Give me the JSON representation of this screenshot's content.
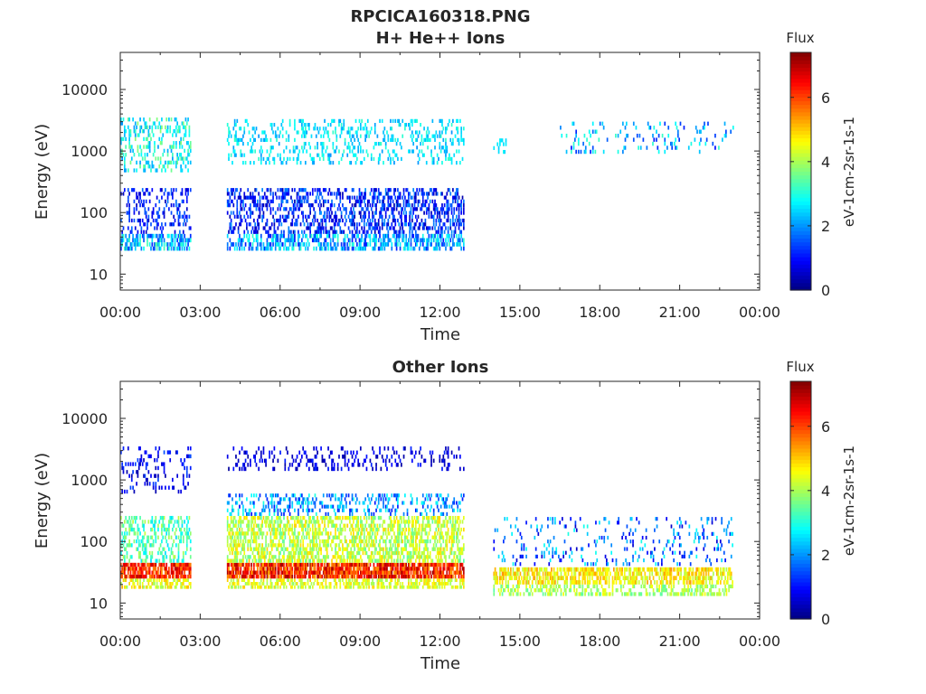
{
  "figure": {
    "title": "RPCICA160318.PNG"
  },
  "chart_data": [
    {
      "type": "heatmap",
      "title": "H+ He++ Ions",
      "xlabel": "Time",
      "ylabel": "Energy (eV)",
      "x_ticks": [
        "00:00",
        "03:00",
        "06:00",
        "09:00",
        "12:00",
        "15:00",
        "18:00",
        "21:00",
        "00:00"
      ],
      "y_ticks": [
        "10",
        "100",
        "1000",
        "10000"
      ],
      "x_range_hours": [
        0,
        24
      ],
      "y_range_ev": [
        5.5,
        40000
      ],
      "y_scale": "log",
      "colorbar": {
        "label": "Flux",
        "unit": "eV-1cm-2sr-1s-1",
        "ticks": [
          "0",
          "2",
          "4",
          "6"
        ],
        "range": [
          0,
          7.4
        ]
      },
      "colormap": [
        "#00007f",
        "#0000ff",
        "#007fff",
        "#00ffff",
        "#7fff7f",
        "#ffff00",
        "#ff7f00",
        "#ff0000",
        "#7f0000"
      ],
      "grid": false,
      "data_gaps_hours": [
        [
          2.7,
          4.0
        ],
        [
          12.95,
          14.05
        ]
      ],
      "segments": [
        {
          "t": [
            0.0,
            2.65
          ],
          "bands": [
            {
              "e": [
                24,
                45
              ],
              "density": 0.55,
              "flux": [
                1.2,
                3.4
              ]
            },
            {
              "e": [
                45,
                250
              ],
              "density": 0.25,
              "flux": [
                0.4,
                1.8
              ]
            },
            {
              "e": [
                450,
                3500
              ],
              "density": 0.28,
              "flux": [
                2.0,
                3.8
              ]
            }
          ]
        },
        {
          "t": [
            4.0,
            12.9
          ],
          "bands": [
            {
              "e": [
                24,
                45
              ],
              "density": 0.5,
              "flux": [
                1.0,
                3.2
              ]
            },
            {
              "e": [
                45,
                250
              ],
              "density": 0.4,
              "flux": [
                0.3,
                2.0
              ]
            },
            {
              "e": [
                600,
                3300
              ],
              "density": 0.22,
              "flux": [
                2.0,
                3.2
              ]
            }
          ]
        },
        {
          "t": [
            14.0,
            14.6
          ],
          "bands": [
            {
              "e": [
                900,
                1600
              ],
              "density": 0.2,
              "flux": [
                2.4,
                3.0
              ]
            }
          ]
        },
        {
          "t": [
            16.5,
            23.0
          ],
          "bands": [
            {
              "e": [
                900,
                3000
              ],
              "density": 0.12,
              "flux": [
                1.0,
                3.2
              ]
            }
          ]
        }
      ]
    },
    {
      "type": "heatmap",
      "title": "Other Ions",
      "xlabel": "Time",
      "ylabel": "Energy (eV)",
      "x_ticks": [
        "00:00",
        "03:00",
        "06:00",
        "09:00",
        "12:00",
        "15:00",
        "18:00",
        "21:00",
        "00:00"
      ],
      "y_ticks": [
        "10",
        "100",
        "1000",
        "10000"
      ],
      "x_range_hours": [
        0,
        24
      ],
      "y_range_ev": [
        5.5,
        40000
      ],
      "y_scale": "log",
      "colorbar": {
        "label": "Flux",
        "unit": "eV-1cm-2sr-1s-1",
        "ticks": [
          "0",
          "2",
          "4",
          "6"
        ],
        "range": [
          0,
          7.4
        ]
      },
      "colormap": [
        "#00007f",
        "#0000ff",
        "#007fff",
        "#00ffff",
        "#7fff7f",
        "#ffff00",
        "#ff7f00",
        "#ff0000",
        "#7f0000"
      ],
      "grid": false,
      "data_gaps_hours": [
        [
          2.7,
          4.0
        ],
        [
          12.95,
          14.05
        ]
      ],
      "segments": [
        {
          "t": [
            0.0,
            2.65
          ],
          "bands": [
            {
              "e": [
                17,
                25
              ],
              "density": 0.5,
              "flux": [
                3.8,
                5.2
              ]
            },
            {
              "e": [
                25,
                45
              ],
              "density": 0.8,
              "flux": [
                5.4,
                7.0
              ]
            },
            {
              "e": [
                45,
                260
              ],
              "density": 0.35,
              "flux": [
                2.5,
                4.2
              ]
            },
            {
              "e": [
                600,
                3500
              ],
              "density": 0.15,
              "flux": [
                0.3,
                1.5
              ]
            }
          ]
        },
        {
          "t": [
            4.0,
            12.9
          ],
          "bands": [
            {
              "e": [
                17,
                25
              ],
              "density": 0.55,
              "flux": [
                3.8,
                5.0
              ]
            },
            {
              "e": [
                25,
                45
              ],
              "density": 0.85,
              "flux": [
                5.2,
                7.2
              ]
            },
            {
              "e": [
                45,
                260
              ],
              "density": 0.55,
              "flux": [
                3.4,
                5.0
              ]
            },
            {
              "e": [
                260,
                600
              ],
              "density": 0.3,
              "flux": [
                1.0,
                3.0
              ]
            },
            {
              "e": [
                1400,
                3500
              ],
              "density": 0.18,
              "flux": [
                0.2,
                1.2
              ]
            }
          ]
        },
        {
          "t": [
            14.0,
            23.0
          ],
          "bands": [
            {
              "e": [
                13,
                20
              ],
              "density": 0.4,
              "flux": [
                3.4,
                4.6
              ]
            },
            {
              "e": [
                20,
                38
              ],
              "density": 0.65,
              "flux": [
                4.0,
                5.4
              ]
            },
            {
              "e": [
                40,
                250
              ],
              "density": 0.12,
              "flux": [
                0.5,
                3.0
              ]
            }
          ]
        }
      ]
    }
  ]
}
